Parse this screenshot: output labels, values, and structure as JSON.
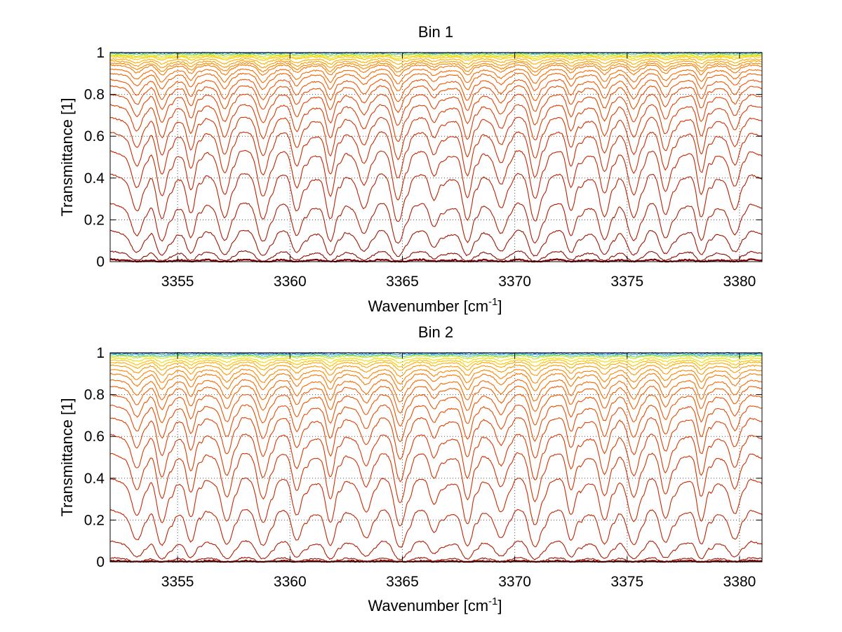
{
  "chart_data": [
    {
      "type": "line",
      "title": "Bin 1",
      "xlabel": "Wavenumber [cm",
      "xlabel_superscript": "-1",
      "xlabel_suffix": "]",
      "ylabel": "Transmittance [1]",
      "xlim": [
        3352,
        3381
      ],
      "ylim": [
        0,
        1
      ],
      "xticks": [
        "3355",
        "3360",
        "3365",
        "3370",
        "3375",
        "3380"
      ],
      "yticks": [
        "0",
        "0.2",
        "0.4",
        "0.6",
        "0.8",
        "1"
      ],
      "grid": "dotted",
      "legend": "none",
      "absorption_lines_x": [
        3353.2,
        3354.3,
        3355.6,
        3357.1,
        3358.8,
        3360.3,
        3361.8,
        3363.3,
        3364.8,
        3366.4,
        3367.9,
        3369.4,
        3370.9,
        3372.5,
        3374.0,
        3375.3,
        3376.7,
        3378.3,
        3379.8
      ],
      "series_baseline_transmittance": [
        0.01,
        0.05,
        0.15,
        0.28,
        0.42,
        0.53,
        0.62,
        0.69,
        0.75,
        0.8,
        0.84,
        0.87,
        0.9,
        0.92,
        0.94,
        0.95,
        0.96,
        0.97,
        0.98,
        0.985,
        0.99,
        0.995,
        1.0
      ],
      "series_colors": [
        "#7f0000",
        "#8c0a00",
        "#a01200",
        "#b01a00",
        "#bb1e00",
        "#c42400",
        "#cc2b00",
        "#d43200",
        "#dc3a00",
        "#e24200",
        "#e84c00",
        "#ee5600",
        "#f26000",
        "#f56c00",
        "#f87800",
        "#fa8800",
        "#fb9a00",
        "#fcae00",
        "#fdc400",
        "#f2dc00",
        "#c8e21a",
        "#5fd08a",
        "#1f60c8"
      ]
    },
    {
      "type": "line",
      "title": "Bin 2",
      "xlabel": "Wavenumber [cm",
      "xlabel_superscript": "-1",
      "xlabel_suffix": "]",
      "ylabel": "Transmittance [1]",
      "xlim": [
        3352,
        3381
      ],
      "ylim": [
        0,
        1
      ],
      "xticks": [
        "3355",
        "3360",
        "3365",
        "3370",
        "3375",
        "3380"
      ],
      "yticks": [
        "0",
        "0.2",
        "0.4",
        "0.6",
        "0.8",
        "1"
      ],
      "grid": "dotted",
      "legend": "none",
      "absorption_lines_x": [
        3353.2,
        3354.3,
        3355.6,
        3357.2,
        3358.8,
        3360.3,
        3361.8,
        3363.4,
        3364.9,
        3366.4,
        3367.9,
        3369.4,
        3370.9,
        3372.5,
        3374.0,
        3375.3,
        3376.7,
        3378.3,
        3379.8
      ],
      "series_baseline_transmittance": [
        0.005,
        0.02,
        0.1,
        0.25,
        0.4,
        0.52,
        0.61,
        0.69,
        0.75,
        0.8,
        0.84,
        0.87,
        0.9,
        0.92,
        0.94,
        0.955,
        0.965,
        0.975,
        0.985,
        0.99,
        0.995,
        1.0
      ],
      "series_colors": [
        "#7f0000",
        "#9a1000",
        "#b01a00",
        "#bf2200",
        "#c92800",
        "#d23000",
        "#da3800",
        "#e04000",
        "#e64a00",
        "#ec5400",
        "#f05e00",
        "#f46a00",
        "#f77600",
        "#fa8600",
        "#fb9800",
        "#fcac00",
        "#fdc200",
        "#f2dc00",
        "#c8e21a",
        "#5fd08a",
        "#30a0d0",
        "#1f60c8"
      ]
    }
  ]
}
